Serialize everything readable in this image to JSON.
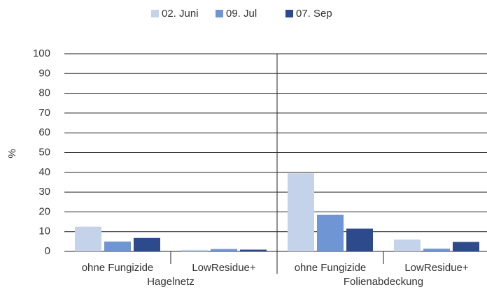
{
  "chart_data": {
    "type": "bar",
    "y_label": "%",
    "categories": [
      "ohne Fungizide",
      "LowResidue+",
      "ohne Fungizide",
      "LowResidue+"
    ],
    "groups": [
      "Hagelnetz",
      "Folienabdeckung"
    ],
    "series": [
      {
        "name": "02. Juni",
        "color": "#c5d3ea",
        "values": [
          12.5,
          0.8,
          39.5,
          6
        ]
      },
      {
        "name": "09. Jul",
        "color": "#6f95d4",
        "values": [
          5,
          1.2,
          18.5,
          1.4
        ]
      },
      {
        "name": "07. Sep",
        "color": "#2c4a8c",
        "values": [
          6.8,
          0.9,
          11.5,
          4.8
        ]
      }
    ],
    "ylim": [
      0,
      100
    ],
    "yticks": [
      0,
      10,
      20,
      30,
      40,
      50,
      60,
      70,
      80,
      90,
      100
    ],
    "grid": true
  }
}
